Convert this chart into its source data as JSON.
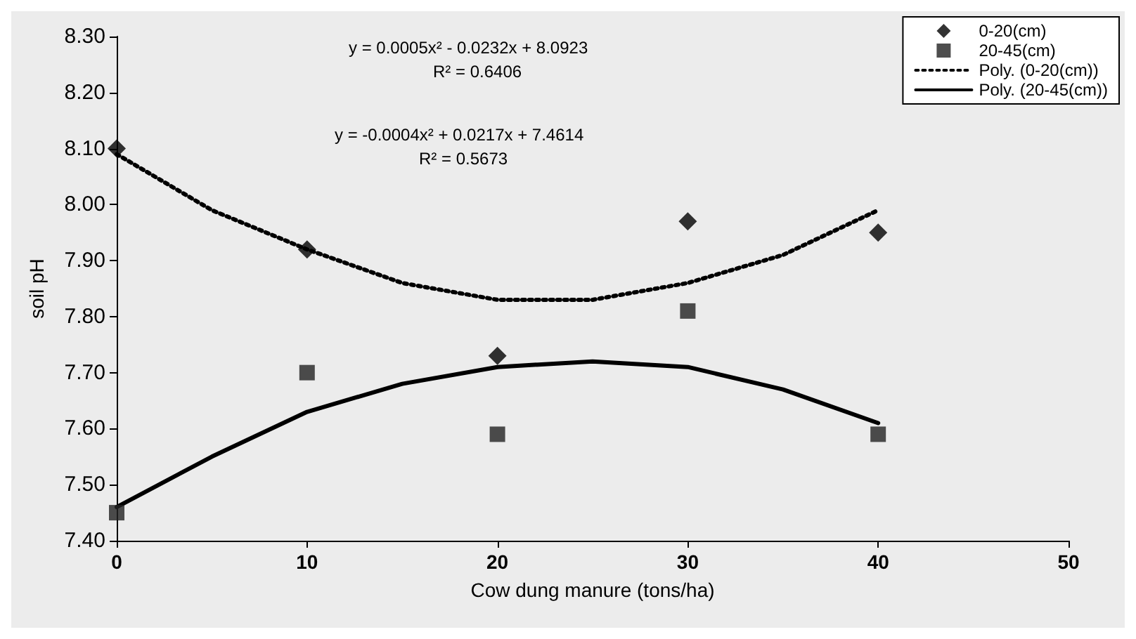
{
  "chart_data": {
    "type": "scatter",
    "xlabel": "Cow dung manure (tons/ha)",
    "ylabel": "soil pH",
    "x": [
      0,
      10,
      20,
      30,
      40
    ],
    "series": [
      {
        "name": "0-20(cm)",
        "color": "#000000",
        "marker": "diamond",
        "values": [
          8.1,
          7.92,
          7.73,
          7.97,
          7.95
        ]
      },
      {
        "name": "20-45(cm)",
        "color": "#222222",
        "marker": "square",
        "values": [
          7.45,
          7.7,
          7.59,
          7.81,
          7.59
        ]
      },
      {
        "name": "Poly. (0-20(cm))",
        "type": "line",
        "color": "#000000",
        "line_style": "dotted",
        "marker": "none",
        "x": [
          0,
          5,
          10,
          15,
          20,
          25,
          30,
          35,
          40
        ],
        "values": [
          8.09,
          7.99,
          7.92,
          7.86,
          7.83,
          7.83,
          7.86,
          7.91,
          7.99
        ]
      },
      {
        "name": "Poly. (20-45(cm))",
        "type": "line",
        "color": "#000000",
        "line_style": "solid",
        "marker": "none",
        "x": [
          0,
          5,
          10,
          15,
          20,
          25,
          30,
          35,
          40
        ],
        "values": [
          7.46,
          7.55,
          7.63,
          7.68,
          7.71,
          7.72,
          7.71,
          7.67,
          7.61
        ]
      }
    ],
    "xlim": [
      0,
      50
    ],
    "xticks": [
      0,
      10,
      20,
      30,
      40,
      50
    ],
    "ylim": [
      7.4,
      8.3
    ],
    "yticks": [
      {
        "value": 7.4,
        "label": "7.40"
      },
      {
        "value": 7.5,
        "label": "7.50"
      },
      {
        "value": 7.6,
        "label": "7.60"
      },
      {
        "value": 7.7,
        "label": "7.70"
      },
      {
        "value": 7.8,
        "label": "7.80"
      },
      {
        "value": 7.9,
        "label": "7.90"
      },
      {
        "value": 8.0,
        "label": "8.00"
      },
      {
        "value": 8.1,
        "label": "8.10"
      },
      {
        "value": 8.2,
        "label": "8.20"
      },
      {
        "value": 8.3,
        "label": "8.30"
      }
    ],
    "annotations": [
      "y = 0.0005x² - 0.0232x + 8.0923",
      "R² = 0.6406",
      "y = -0.0004x² + 0.0217x + 7.4614",
      "R² = 0.5673"
    ],
    "legend": "top right",
    "grid": false
  }
}
